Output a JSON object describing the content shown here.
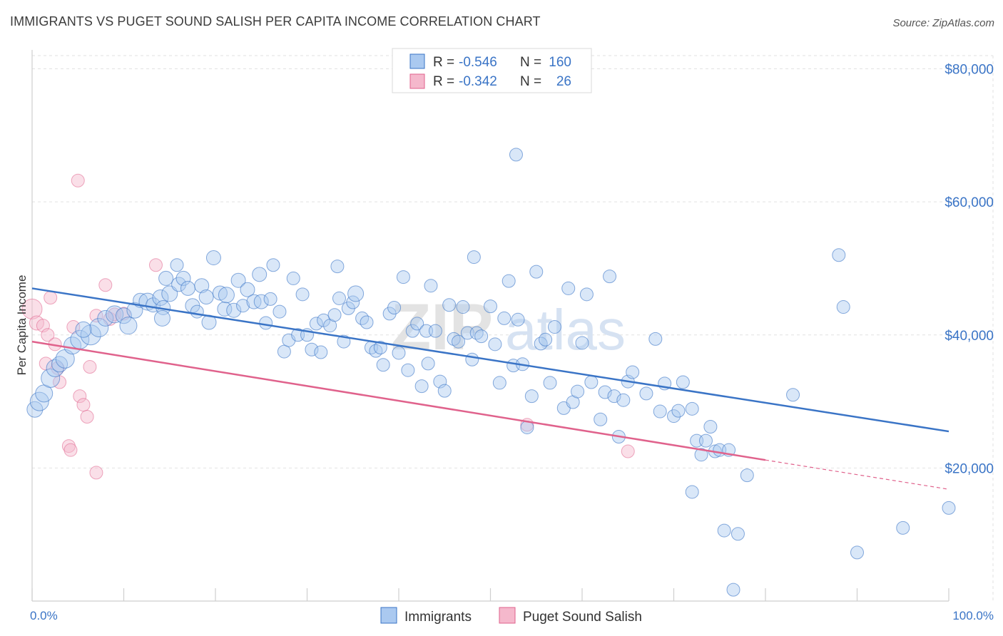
{
  "title": "IMMIGRANTS VS PUGET SOUND SALISH PER CAPITA INCOME CORRELATION CHART",
  "source": "Source: ZipAtlas.com",
  "watermark": {
    "zip": "ZIP",
    "atlas": "atlas"
  },
  "legend": {
    "r_label": "R =",
    "n_label": "N =",
    "rows": [
      {
        "r": "-0.546",
        "n": "160",
        "color": "#aac9f0"
      },
      {
        "r": "-0.342",
        "n": "26",
        "color": "#f5b8cc"
      }
    ]
  },
  "bottom_legend": [
    "Immigrants",
    "Puget Sound Salish"
  ],
  "chart_data": {
    "type": "scatter",
    "ylabel": "Per Capita Income",
    "xlabel": "",
    "xlim": [
      0,
      100
    ],
    "ylim": [
      0,
      82000
    ],
    "x_tick_labels": [
      "0.0%",
      "100.0%"
    ],
    "y_ticks": [
      20000,
      40000,
      60000,
      80000
    ],
    "y_tick_labels": [
      "$20,000",
      "$40,000",
      "$60,000",
      "$80,000"
    ],
    "grid": true,
    "colors": {
      "immigrants": "#3a74c6",
      "immigrants_fill": "#aac9f0",
      "salish": "#e0628c",
      "salish_fill": "#f5b8cc"
    },
    "series": [
      {
        "name": "Immigrants",
        "trend": {
          "x": [
            0,
            100
          ],
          "y": [
            47000,
            25500
          ]
        },
        "points": [
          [
            0.3,
            28800,
            11
          ],
          [
            0.8,
            30000,
            13
          ],
          [
            1.3,
            31200,
            12
          ],
          [
            2.0,
            33500,
            13
          ],
          [
            2.5,
            35000,
            12
          ],
          [
            3.0,
            35600,
            11
          ],
          [
            3.6,
            36400,
            13
          ],
          [
            4.4,
            38400,
            12
          ],
          [
            5.2,
            39300,
            13
          ],
          [
            6.4,
            40000,
            14
          ],
          [
            7.3,
            41100,
            13
          ],
          [
            5.6,
            40800,
            11
          ],
          [
            8.0,
            42500,
            11
          ],
          [
            9.0,
            43100,
            12
          ],
          [
            10.0,
            42900,
            11
          ],
          [
            10.5,
            41400,
            12
          ],
          [
            11.2,
            43700,
            11
          ],
          [
            11.8,
            45200,
            10
          ],
          [
            12.6,
            45000,
            12
          ],
          [
            13.2,
            44500,
            10
          ],
          [
            14.0,
            45600,
            11
          ],
          [
            14.3,
            44100,
            10
          ],
          [
            14.2,
            42500,
            11
          ],
          [
            14.6,
            48500,
            10
          ],
          [
            15.0,
            46200,
            11
          ],
          [
            15.8,
            50500,
            9
          ],
          [
            16.0,
            47600,
            10
          ],
          [
            16.5,
            48500,
            10
          ],
          [
            17.0,
            47000,
            10
          ],
          [
            17.5,
            44400,
            10
          ],
          [
            18.0,
            43500,
            9
          ],
          [
            18.5,
            47400,
            10
          ],
          [
            19.0,
            45700,
            10
          ],
          [
            19.3,
            41900,
            10
          ],
          [
            19.8,
            51600,
            10
          ],
          [
            20.5,
            46300,
            10
          ],
          [
            21.0,
            43900,
            10
          ],
          [
            21.2,
            46000,
            11
          ],
          [
            22.0,
            43700,
            10
          ],
          [
            22.5,
            48200,
            10
          ],
          [
            23.0,
            44400,
            9
          ],
          [
            23.5,
            46800,
            10
          ],
          [
            24.2,
            45000,
            10
          ],
          [
            24.8,
            49100,
            10
          ],
          [
            25.0,
            45000,
            10
          ],
          [
            25.5,
            41800,
            9
          ],
          [
            26.0,
            45400,
            9
          ],
          [
            26.3,
            50500,
            9
          ],
          [
            27.0,
            43500,
            9
          ],
          [
            27.5,
            37500,
            9
          ],
          [
            28.0,
            39200,
            9
          ],
          [
            28.5,
            48500,
            9
          ],
          [
            29.0,
            40000,
            9
          ],
          [
            29.5,
            46100,
            9
          ],
          [
            30.0,
            40000,
            9
          ],
          [
            30.5,
            37800,
            9
          ],
          [
            31.0,
            41700,
            9
          ],
          [
            31.5,
            37400,
            9
          ],
          [
            31.8,
            42200,
            9
          ],
          [
            32.5,
            41400,
            9
          ],
          [
            33.0,
            43000,
            9
          ],
          [
            33.3,
            50300,
            9
          ],
          [
            33.5,
            45500,
            9
          ],
          [
            34.0,
            39000,
            9
          ],
          [
            34.5,
            44000,
            9
          ],
          [
            35.0,
            44900,
            9
          ],
          [
            35.3,
            46200,
            11
          ],
          [
            36.0,
            42500,
            9
          ],
          [
            36.5,
            41900,
            9
          ],
          [
            37.0,
            38100,
            9
          ],
          [
            37.5,
            37600,
            9
          ],
          [
            38.0,
            38100,
            9
          ],
          [
            38.3,
            35500,
            9
          ],
          [
            39.0,
            43200,
            9
          ],
          [
            39.5,
            44100,
            9
          ],
          [
            40.0,
            37300,
            9
          ],
          [
            40.5,
            48700,
            9
          ],
          [
            41.0,
            34700,
            9
          ],
          [
            41.5,
            40600,
            9
          ],
          [
            42.0,
            41700,
            9
          ],
          [
            42.5,
            32300,
            9
          ],
          [
            43.0,
            40600,
            9
          ],
          [
            43.2,
            35700,
            9
          ],
          [
            43.5,
            47400,
            9
          ],
          [
            44.0,
            40600,
            9
          ],
          [
            44.5,
            33000,
            9
          ],
          [
            45.0,
            31600,
            9
          ],
          [
            45.5,
            44500,
            9
          ],
          [
            46.0,
            39400,
            9
          ],
          [
            46.5,
            39000,
            9
          ],
          [
            47.0,
            44200,
            9
          ],
          [
            47.5,
            40300,
            9
          ],
          [
            48.0,
            36300,
            9
          ],
          [
            48.2,
            51700,
            9
          ],
          [
            48.5,
            40300,
            9
          ],
          [
            49.0,
            39800,
            9
          ],
          [
            50.0,
            44300,
            9
          ],
          [
            50.5,
            38600,
            9
          ],
          [
            51.0,
            32800,
            9
          ],
          [
            51.5,
            42500,
            9
          ],
          [
            52.0,
            48100,
            9
          ],
          [
            52.5,
            35400,
            9
          ],
          [
            52.8,
            67100,
            9
          ],
          [
            53.0,
            42300,
            9
          ],
          [
            53.5,
            35600,
            9
          ],
          [
            54.0,
            26100,
            9
          ],
          [
            54.5,
            30800,
            9
          ],
          [
            55.0,
            49500,
            9
          ],
          [
            55.5,
            38700,
            9
          ],
          [
            56.0,
            39300,
            9
          ],
          [
            56.5,
            32800,
            9
          ],
          [
            57.0,
            41200,
            9
          ],
          [
            58.0,
            29000,
            9
          ],
          [
            58.5,
            47000,
            9
          ],
          [
            59.0,
            29900,
            9
          ],
          [
            59.5,
            31500,
            9
          ],
          [
            60.0,
            38800,
            9
          ],
          [
            60.5,
            46100,
            9
          ],
          [
            61.0,
            32900,
            9
          ],
          [
            62.0,
            27300,
            9
          ],
          [
            62.5,
            31400,
            9
          ],
          [
            63.0,
            48800,
            9
          ],
          [
            63.5,
            30800,
            9
          ],
          [
            64.0,
            24700,
            9
          ],
          [
            64.5,
            30200,
            9
          ],
          [
            65.0,
            33000,
            9
          ],
          [
            65.5,
            34400,
            9
          ],
          [
            67.0,
            31200,
            9
          ],
          [
            68.0,
            39400,
            9
          ],
          [
            68.5,
            28500,
            9
          ],
          [
            69.0,
            32700,
            9
          ],
          [
            70.0,
            27800,
            9
          ],
          [
            70.5,
            28600,
            9
          ],
          [
            71.0,
            32900,
            9
          ],
          [
            72.0,
            28900,
            9
          ],
          [
            72.5,
            24100,
            9
          ],
          [
            73.0,
            22000,
            9
          ],
          [
            73.5,
            24100,
            9
          ],
          [
            74.0,
            26200,
            9
          ],
          [
            74.5,
            22500,
            9
          ],
          [
            75.0,
            22700,
            9
          ],
          [
            72.0,
            16400,
            9
          ],
          [
            76.0,
            22700,
            9
          ],
          [
            78.0,
            18900,
            9
          ],
          [
            77.0,
            10100,
            9
          ],
          [
            76.5,
            1700,
            9
          ],
          [
            75.5,
            10600,
            9
          ],
          [
            83.0,
            31000,
            9
          ],
          [
            88.0,
            52000,
            9
          ],
          [
            88.5,
            44200,
            9
          ],
          [
            90.0,
            7300,
            9
          ],
          [
            95.0,
            11000,
            9
          ],
          [
            100.0,
            14000,
            9
          ]
        ]
      },
      {
        "name": "Puget Sound Salish",
        "trend": {
          "x": [
            0,
            80,
            100
          ],
          "y": [
            39000,
            21200,
            16800
          ]
        },
        "points": [
          [
            0.0,
            43900,
            14
          ],
          [
            0.5,
            41800,
            10
          ],
          [
            1.2,
            41400,
            9
          ],
          [
            1.7,
            40000,
            9
          ],
          [
            2.0,
            45600,
            9
          ],
          [
            2.5,
            38600,
            9
          ],
          [
            2.8,
            35000,
            9
          ],
          [
            1.5,
            35700,
            9
          ],
          [
            3.0,
            32900,
            9
          ],
          [
            4.5,
            41200,
            9
          ],
          [
            5.2,
            30800,
            9
          ],
          [
            5.6,
            29500,
            9
          ],
          [
            6.0,
            27700,
            9
          ],
          [
            6.3,
            35200,
            9
          ],
          [
            5.0,
            63200,
            9
          ],
          [
            7.0,
            42900,
            9
          ],
          [
            8.0,
            47500,
            9
          ],
          [
            8.5,
            42400,
            9
          ],
          [
            9.0,
            43100,
            9
          ],
          [
            10.0,
            43200,
            9
          ],
          [
            13.5,
            50500,
            9
          ],
          [
            4.0,
            23300,
            9
          ],
          [
            4.2,
            22700,
            9
          ],
          [
            7.0,
            19300,
            9
          ],
          [
            54.0,
            26500,
            9
          ],
          [
            65.0,
            22500,
            9
          ]
        ]
      }
    ]
  }
}
